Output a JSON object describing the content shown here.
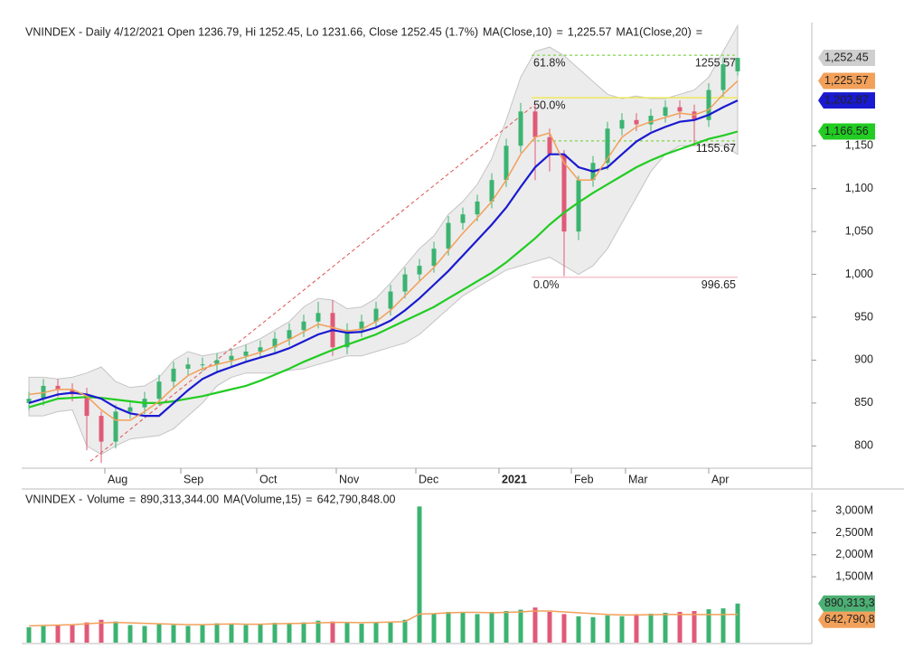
{
  "chart_data": [
    {
      "type": "candlestick",
      "title": "VNINDEX - Daily 4/12/2021 Open 1236.79, Hi 1252.45, Lo 1231.66, Close 1252.45 (1.7%)",
      "separator": "=",
      "up_color": "#3cb371",
      "down_color": "#e05a78",
      "last_label": "1,252.45",
      "xlim": [
        0,
        217.5
      ],
      "ylim": [
        774,
        1291.5
      ],
      "xticks": [
        {
          "value": 22,
          "label": "Aug"
        },
        {
          "value": 43,
          "label": "Sep"
        },
        {
          "value": 64,
          "label": "Oct"
        },
        {
          "value": 86,
          "label": "Nov"
        },
        {
          "value": 108,
          "label": "Dec"
        },
        {
          "value": 131,
          "label": "2021",
          "bold": true
        },
        {
          "value": 151,
          "label": "Feb"
        },
        {
          "value": 166,
          "label": "Mar"
        },
        {
          "value": 189,
          "label": "Apr"
        }
      ],
      "yticks": [
        800,
        850,
        900,
        950,
        {
          "value": 1000,
          "label": "1,000"
        },
        {
          "value": 1050,
          "label": "1,050"
        },
        {
          "value": 1100,
          "label": "1,100"
        },
        {
          "value": 1150,
          "label": "1,150"
        }
      ],
      "x": [
        1,
        5,
        9,
        13,
        17,
        21,
        25,
        29,
        33,
        37,
        41,
        45,
        49,
        53,
        57,
        61,
        65,
        69,
        73,
        77,
        81,
        85,
        89,
        93,
        97,
        101,
        105,
        109,
        113,
        117,
        121,
        125,
        129,
        133,
        137,
        141,
        145,
        149,
        153,
        157,
        161,
        165,
        169,
        173,
        177,
        181,
        185,
        189,
        193,
        197
      ],
      "open": [
        850,
        855,
        870,
        865,
        860,
        835,
        805,
        840,
        845,
        855,
        875,
        890,
        895,
        895,
        900,
        905,
        910,
        915,
        925,
        935,
        945,
        955,
        915,
        935,
        945,
        960,
        980,
        1000,
        1010,
        1030,
        1060,
        1070,
        1085,
        1110,
        1150,
        1190,
        1160,
        1140,
        1050,
        1110,
        1130,
        1170,
        1180,
        1175,
        1185,
        1195,
        1190,
        1180,
        1215,
        1236.79
      ],
      "high": [
        863,
        878,
        878,
        873,
        868,
        840,
        848,
        853,
        863,
        883,
        898,
        903,
        903,
        908,
        913,
        918,
        923,
        933,
        943,
        953,
        968,
        970,
        943,
        953,
        968,
        988,
        1008,
        1018,
        1038,
        1068,
        1078,
        1093,
        1118,
        1158,
        1200,
        1198,
        1170,
        1145,
        1115,
        1138,
        1178,
        1188,
        1188,
        1193,
        1203,
        1203,
        1198,
        1223,
        1253,
        1252.45
      ],
      "low": [
        842,
        847,
        857,
        852,
        795,
        780,
        797,
        832,
        837,
        847,
        867,
        882,
        887,
        887,
        892,
        897,
        902,
        907,
        917,
        927,
        937,
        905,
        907,
        927,
        937,
        952,
        972,
        992,
        1002,
        1022,
        1052,
        1062,
        1077,
        1102,
        1142,
        1110,
        1120,
        998,
        1040,
        1102,
        1122,
        1162,
        1167,
        1167,
        1177,
        1182,
        1150,
        1172,
        1207,
        1231.66
      ],
      "close": [
        855,
        870,
        865,
        860,
        835,
        805,
        840,
        845,
        855,
        875,
        890,
        895,
        895,
        900,
        905,
        910,
        915,
        925,
        935,
        945,
        955,
        915,
        935,
        945,
        960,
        980,
        1000,
        1010,
        1030,
        1060,
        1070,
        1085,
        1110,
        1150,
        1190,
        1160,
        1140,
        1050,
        1110,
        1130,
        1170,
        1180,
        1175,
        1185,
        1195,
        1190,
        1180,
        1215,
        1245,
        1252.45
      ],
      "band": {
        "color": "#ececec",
        "upper": [
          880,
          880,
          878,
          880,
          885,
          892,
          875,
          868,
          870,
          880,
          900,
          910,
          905,
          908,
          912,
          918,
          925,
          935,
          945,
          962,
          972,
          970,
          960,
          962,
          972,
          990,
          1010,
          1030,
          1045,
          1070,
          1085,
          1105,
          1135,
          1180,
          1230,
          1260,
          1265,
          1255,
          1240,
          1225,
          1210,
          1205,
          1208,
          1205,
          1205,
          1210,
          1215,
          1230,
          1260,
          1290
        ],
        "lower": [
          835,
          835,
          840,
          842,
          800,
          790,
          800,
          808,
          810,
          812,
          820,
          835,
          850,
          870,
          880,
          885,
          885,
          885,
          888,
          890,
          895,
          900,
          905,
          905,
          910,
          915,
          920,
          930,
          945,
          960,
          975,
          985,
          995,
          1005,
          1010,
          1015,
          1020,
          1010,
          1000,
          1010,
          1030,
          1060,
          1090,
          1120,
          1140,
          1150,
          1150,
          1150,
          1150,
          1140
        ]
      },
      "series": [
        {
          "name": "MA(Close,10)",
          "color": "#f2a05a",
          "last_label": "1,225.57",
          "values": [
            860,
            862,
            866,
            866,
            858,
            842,
            830,
            830,
            840,
            852,
            868,
            882,
            890,
            895,
            899,
            904,
            909,
            916,
            924,
            933,
            942,
            938,
            934,
            936,
            945,
            958,
            975,
            992,
            1008,
            1028,
            1048,
            1066,
            1085,
            1110,
            1140,
            1160,
            1165,
            1130,
            1110,
            1110,
            1135,
            1160,
            1172,
            1178,
            1183,
            1188,
            1186,
            1192,
            1210,
            1225.57
          ]
        },
        {
          "name": "MA1(Close,20)",
          "color": "#1a1ad0",
          "last_label": "1,202.87",
          "values": [
            850,
            855,
            860,
            862,
            860,
            855,
            845,
            838,
            835,
            835,
            850,
            865,
            878,
            886,
            892,
            898,
            903,
            908,
            914,
            922,
            930,
            935,
            932,
            933,
            938,
            946,
            958,
            972,
            988,
            1004,
            1022,
            1040,
            1058,
            1078,
            1102,
            1125,
            1140,
            1140,
            1125,
            1120,
            1125,
            1140,
            1155,
            1165,
            1172,
            1178,
            1180,
            1186,
            1195,
            1202.87
          ]
        },
        {
          "color": "#22cc22",
          "last_label": "1,166.56",
          "values": [
            845,
            850,
            855,
            856,
            857,
            856,
            854,
            852,
            850,
            850,
            852,
            855,
            858,
            862,
            866,
            870,
            876,
            883,
            890,
            898,
            905,
            912,
            918,
            924,
            930,
            938,
            946,
            954,
            962,
            972,
            982,
            992,
            1002,
            1014,
            1028,
            1042,
            1058,
            1072,
            1084,
            1095,
            1105,
            1115,
            1125,
            1133,
            1140,
            1146,
            1152,
            1158,
            1162,
            1166.56
          ]
        }
      ],
      "trendline": {
        "color": "#e05050",
        "x": [
          18,
          140
        ],
        "y": [
          782,
          1195
        ]
      },
      "fib_range": [
        140,
        197
      ],
      "fib_levels": [
        {
          "value": 1255.57,
          "label": "61.8%",
          "value_shown": true,
          "color": "#7fd64a",
          "dash": true
        },
        {
          "value": 1206,
          "label": "50.0%",
          "value_shown": false,
          "color": "#eee840",
          "dash": false
        },
        {
          "value": 1155.67,
          "value_shown": true,
          "color": "#7fd64a",
          "dash": true
        },
        {
          "value": 996.65,
          "label": "0.0%",
          "value_shown": true,
          "color": "#f4b8c0",
          "dash": false
        }
      ]
    },
    {
      "type": "bar",
      "title": "VNINDEX -",
      "separator": "=",
      "xlim": [
        0,
        217.5
      ],
      "ylim": [
        0,
        3416
      ],
      "yticks": [
        {
          "value": 1500,
          "label": "1,500M"
        },
        {
          "value": 2000,
          "label": "2,000M"
        },
        {
          "value": 2500,
          "label": "2,500M"
        },
        {
          "value": 3000,
          "label": "3,000M"
        }
      ],
      "x": [
        1,
        5,
        9,
        13,
        17,
        21,
        25,
        29,
        33,
        37,
        41,
        45,
        49,
        53,
        57,
        61,
        65,
        69,
        73,
        77,
        81,
        85,
        89,
        93,
        97,
        101,
        105,
        109,
        113,
        117,
        121,
        125,
        129,
        133,
        137,
        141,
        145,
        149,
        153,
        157,
        161,
        165,
        169,
        173,
        177,
        181,
        185,
        189,
        193,
        197
      ],
      "series": [
        {
          "name": "Volume",
          "color": "#3cb371",
          "box_color": "#4caf73",
          "last_label": "890,313,344.00",
          "values": [
            350,
            380,
            400,
            420,
            460,
            520,
            480,
            400,
            380,
            420,
            400,
            380,
            420,
            440,
            420,
            400,
            420,
            450,
            430,
            460,
            500,
            480,
            450,
            430,
            470,
            480,
            520,
            3100,
            650,
            700,
            680,
            650,
            700,
            720,
            750,
            800,
            700,
            650,
            600,
            580,
            620,
            600,
            650,
            660,
            680,
            700,
            720,
            760,
            780,
            890.313344
          ]
        },
        {
          "name": "MA(Volume,15)",
          "color": "#f2a05a",
          "box_color": "#f2a05a",
          "last_label": "642,790,848.00",
          "values": [
            380,
            390,
            400,
            410,
            430,
            450,
            460,
            450,
            440,
            430,
            420,
            410,
            410,
            420,
            425,
            420,
            420,
            430,
            435,
            440,
            450,
            460,
            460,
            455,
            460,
            470,
            480,
            650,
            660,
            680,
            690,
            690,
            680,
            690,
            700,
            720,
            720,
            700,
            680,
            660,
            640,
            630,
            630,
            635,
            640,
            645,
            640,
            638,
            640,
            642.790848
          ]
        }
      ]
    }
  ]
}
